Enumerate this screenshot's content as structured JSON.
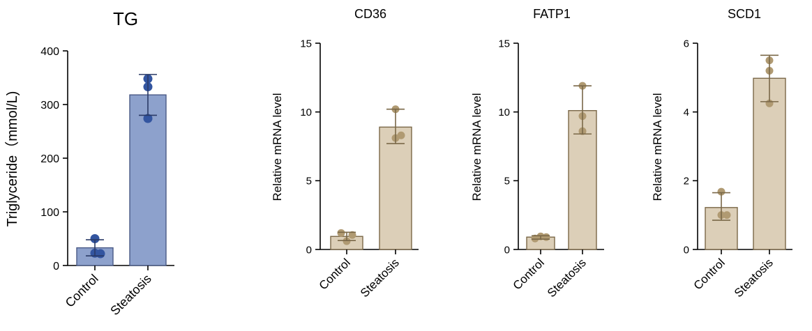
{
  "chart_data": [
    {
      "type": "bar",
      "title": "TG",
      "ylabel": "Triglyceride（mmol/L)",
      "xlabel": "",
      "categories": [
        "Control",
        "Steatosis"
      ],
      "ylim": [
        0,
        400
      ],
      "yticks": [
        0,
        100,
        200,
        300,
        400
      ],
      "values": [
        33,
        318
      ],
      "error_high": [
        48,
        356
      ],
      "error_low": [
        18,
        280
      ],
      "points": [
        [
          50,
          23,
          22
        ],
        [
          348,
          333,
          274
        ]
      ],
      "colors": {
        "bar_fill": "#8da1cc",
        "bar_stroke": "#4a5a86",
        "point": "#3355a0",
        "error": "#2a3a66"
      }
    },
    {
      "type": "bar",
      "title": "CD36",
      "ylabel": "Relative mRNA level",
      "xlabel": "",
      "categories": [
        "Control",
        "Steatosis"
      ],
      "ylim": [
        0,
        15
      ],
      "yticks": [
        0,
        5,
        10,
        15
      ],
      "values": [
        0.95,
        8.9
      ],
      "error_high": [
        1.25,
        10.2
      ],
      "error_low": [
        0.65,
        7.7
      ],
      "points": [
        [
          1.2,
          0.6,
          1.05
        ],
        [
          10.2,
          8.1,
          8.3
        ]
      ],
      "colors": {
        "bar_fill": "#dccfb8",
        "bar_stroke": "#7a6848",
        "point": "#b09a72",
        "error": "#7a6848"
      }
    },
    {
      "type": "bar",
      "title": "FATP1",
      "ylabel": "Relative mRNA level",
      "xlabel": "",
      "categories": [
        "Control",
        "Steatosis"
      ],
      "ylim": [
        0,
        15
      ],
      "yticks": [
        0,
        5,
        10,
        15
      ],
      "values": [
        0.9,
        10.1
      ],
      "error_high": [
        1.0,
        11.9
      ],
      "error_low": [
        0.75,
        8.4
      ],
      "points": [
        [
          0.8,
          0.95,
          0.9
        ],
        [
          11.9,
          9.7,
          8.6
        ]
      ],
      "colors": {
        "bar_fill": "#dccfb8",
        "bar_stroke": "#7a6848",
        "point": "#b09a72",
        "error": "#7a6848"
      }
    },
    {
      "type": "bar",
      "title": "SCD1",
      "ylabel": "Relative mRNA level",
      "xlabel": "",
      "categories": [
        "Control",
        "Steatosis"
      ],
      "ylim": [
        0,
        6
      ],
      "yticks": [
        0,
        2,
        4,
        6
      ],
      "values": [
        1.22,
        4.98
      ],
      "error_high": [
        1.65,
        5.65
      ],
      "error_low": [
        0.85,
        4.3
      ],
      "points": [
        [
          1.68,
          1.0,
          1.0
        ],
        [
          5.5,
          5.2,
          4.25
        ]
      ],
      "colors": {
        "bar_fill": "#dccfb8",
        "bar_stroke": "#7a6848",
        "point": "#b09a72",
        "error": "#7a6848"
      }
    }
  ]
}
